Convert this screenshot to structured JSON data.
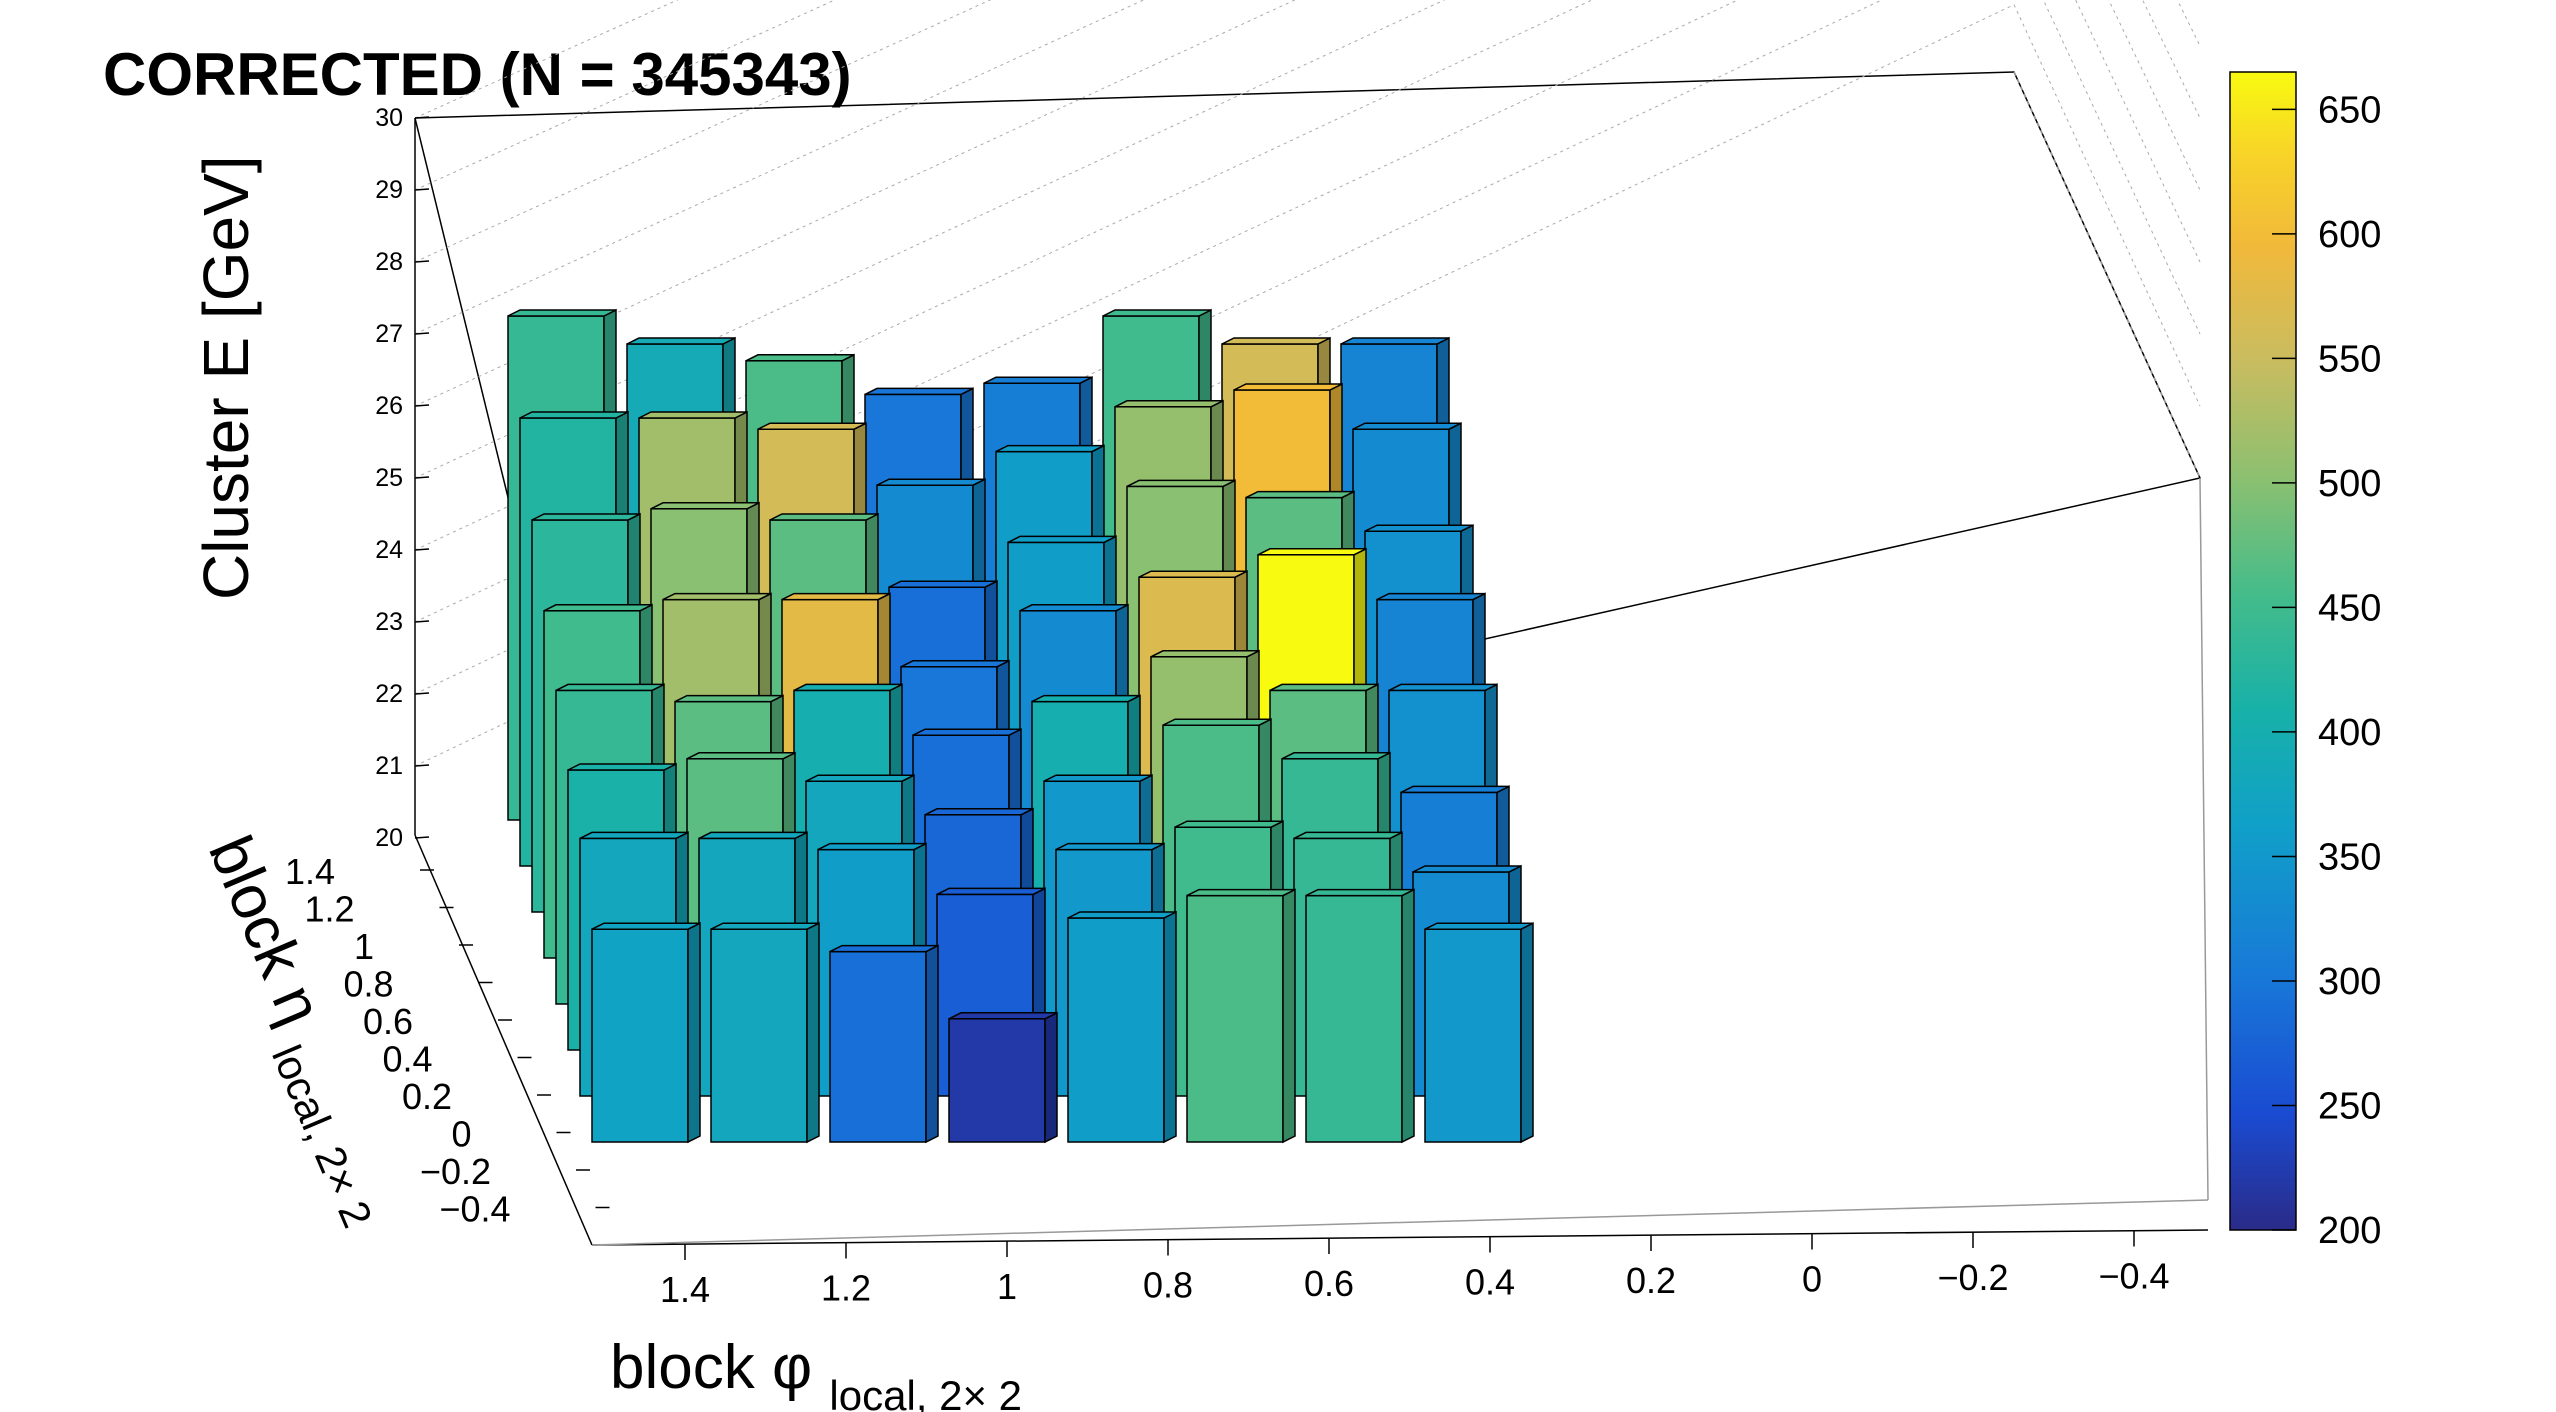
{
  "title": "CORRECTED  (N = 345343)",
  "chart_data": {
    "type": "bar3d",
    "title": "CORRECTED  (N = 345343)",
    "zlabel": "Cluster E  [GeV]",
    "xlabel_main": "block φ",
    "xlabel_sub": "local, 2× 2",
    "ylabel_main": "block η",
    "ylabel_sub": "local, 2× 2",
    "z_ticks": [
      "20",
      "21",
      "22",
      "23",
      "24",
      "25",
      "26",
      "27",
      "28",
      "29",
      "30"
    ],
    "x_ticks": [
      "1.4",
      "1.2",
      "1",
      "0.8",
      "0.6",
      "0.4",
      "0.2",
      "0",
      "−0.2",
      "−0.4"
    ],
    "y_ticks": [
      "1.4",
      "1.2",
      "1",
      "0.8",
      "0.6",
      "0.4",
      "0.2",
      "0",
      "−0.2",
      "−0.4"
    ],
    "zlim": [
      20,
      30
    ],
    "colorbar": {
      "range": [
        200,
        665
      ],
      "ticks": [
        "650",
        "600",
        "550",
        "500",
        "450",
        "400",
        "350",
        "300",
        "250",
        "200"
      ],
      "tick_values": [
        650,
        600,
        550,
        500,
        450,
        400,
        350,
        300,
        250,
        200
      ]
    },
    "grid": true,
    "legend": "colorbar-right",
    "x_bins": [
      "1.5",
      "1.25",
      "1.0",
      "0.75",
      "0.5",
      "0.25",
      "0",
      "−0.25"
    ],
    "y_bins": [
      "−0.25",
      "0",
      "0.25",
      "0.5",
      "0.75",
      "1.0",
      "1.25",
      "1.5"
    ],
    "bars": [
      {
        "x": "1.5",
        "y": "1.5",
        "e": 29.0,
        "color": 440
      },
      {
        "x": "1.25",
        "y": "1.5",
        "e": 28.5,
        "color": 390
      },
      {
        "x": "1.0",
        "y": "1.5",
        "e": 28.2,
        "color": 460
      },
      {
        "x": "0.75",
        "y": "1.5",
        "e": 27.6,
        "color": 300
      },
      {
        "x": "0.5",
        "y": "1.5",
        "e": 27.8,
        "color": 310
      },
      {
        "x": "0.25",
        "y": "1.5",
        "e": 29.0,
        "color": 450
      },
      {
        "x": "0",
        "y": "1.5",
        "e": 28.5,
        "color": 560
      },
      {
        "x": "−0.25",
        "y": "1.5",
        "e": 28.5,
        "color": 320
      },
      {
        "x": "1.5",
        "y": "1.25",
        "e": 28.0,
        "color": 420
      },
      {
        "x": "1.25",
        "y": "1.25",
        "e": 28.0,
        "color": 520
      },
      {
        "x": "1.0",
        "y": "1.25",
        "e": 27.8,
        "color": 560
      },
      {
        "x": "0.75",
        "y": "1.25",
        "e": 26.8,
        "color": 330
      },
      {
        "x": "0.5",
        "y": "1.25",
        "e": 27.4,
        "color": 360
      },
      {
        "x": "0.25",
        "y": "1.25",
        "e": 28.2,
        "color": 510
      },
      {
        "x": "0",
        "y": "1.25",
        "e": 28.5,
        "color": 600
      },
      {
        "x": "−0.25",
        "y": "1.25",
        "e": 27.8,
        "color": 330
      },
      {
        "x": "1.5",
        "y": "1.0",
        "e": 27.0,
        "color": 430
      },
      {
        "x": "1.25",
        "y": "1.0",
        "e": 27.2,
        "color": 500
      },
      {
        "x": "1.0",
        "y": "1.0",
        "e": 27.0,
        "color": 470
      },
      {
        "x": "0.75",
        "y": "1.0",
        "e": 25.8,
        "color": 290
      },
      {
        "x": "0.5",
        "y": "1.0",
        "e": 26.6,
        "color": 360
      },
      {
        "x": "0.25",
        "y": "1.0",
        "e": 27.6,
        "color": 500
      },
      {
        "x": "0",
        "y": "1.0",
        "e": 27.4,
        "color": 470
      },
      {
        "x": "−0.25",
        "y": "1.0",
        "e": 26.8,
        "color": 340
      },
      {
        "x": "1.5",
        "y": "0.75",
        "e": 26.2,
        "color": 450
      },
      {
        "x": "1.25",
        "y": "0.75",
        "e": 26.4,
        "color": 520
      },
      {
        "x": "1.0",
        "y": "0.75",
        "e": 26.4,
        "color": 580
      },
      {
        "x": "0.75",
        "y": "0.75",
        "e": 25.2,
        "color": 300
      },
      {
        "x": "0.5",
        "y": "0.75",
        "e": 26.2,
        "color": 330
      },
      {
        "x": "0.25",
        "y": "0.75",
        "e": 26.8,
        "color": 570
      },
      {
        "x": "0",
        "y": "0.75",
        "e": 27.2,
        "color": 665
      },
      {
        "x": "−0.25",
        "y": "0.75",
        "e": 26.4,
        "color": 320
      },
      {
        "x": "1.5",
        "y": "0.5",
        "e": 25.6,
        "color": 440
      },
      {
        "x": "1.25",
        "y": "0.5",
        "e": 25.4,
        "color": 470
      },
      {
        "x": "1.0",
        "y": "0.5",
        "e": 25.6,
        "color": 400
      },
      {
        "x": "0.75",
        "y": "0.5",
        "e": 24.8,
        "color": 290
      },
      {
        "x": "0.5",
        "y": "0.5",
        "e": 25.4,
        "color": 400
      },
      {
        "x": "0.25",
        "y": "0.5",
        "e": 26.2,
        "color": 510
      },
      {
        "x": "0",
        "y": "0.5",
        "e": 25.6,
        "color": 470
      },
      {
        "x": "−0.25",
        "y": "0.5",
        "e": 25.6,
        "color": 340
      },
      {
        "x": "1.5",
        "y": "0.25",
        "e": 25.0,
        "color": 410
      },
      {
        "x": "1.25",
        "y": "0.25",
        "e": 25.2,
        "color": 470
      },
      {
        "x": "1.0",
        "y": "0.25",
        "e": 24.8,
        "color": 380
      },
      {
        "x": "0.75",
        "y": "0.25",
        "e": 24.2,
        "color": 280
      },
      {
        "x": "0.5",
        "y": "0.25",
        "e": 24.8,
        "color": 350
      },
      {
        "x": "0.25",
        "y": "0.25",
        "e": 25.8,
        "color": 460
      },
      {
        "x": "0",
        "y": "0.25",
        "e": 25.2,
        "color": 440
      },
      {
        "x": "−0.25",
        "y": "0.25",
        "e": 24.6,
        "color": 310
      },
      {
        "x": "1.5",
        "y": "0",
        "e": 24.6,
        "color": 380
      },
      {
        "x": "1.25",
        "y": "0",
        "e": 24.6,
        "color": 380
      },
      {
        "x": "1.0",
        "y": "0",
        "e": 24.4,
        "color": 360
      },
      {
        "x": "0.75",
        "y": "0",
        "e": 23.6,
        "color": 270
      },
      {
        "x": "0.5",
        "y": "0",
        "e": 24.4,
        "color": 350
      },
      {
        "x": "0.25",
        "y": "0",
        "e": 24.8,
        "color": 450
      },
      {
        "x": "0",
        "y": "0",
        "e": 24.6,
        "color": 440
      },
      {
        "x": "−0.25",
        "y": "0",
        "e": 24.0,
        "color": 330
      },
      {
        "x": "1.5",
        "y": "−0.25",
        "e": 23.8,
        "color": 370
      },
      {
        "x": "1.25",
        "y": "−0.25",
        "e": 23.8,
        "color": 380
      },
      {
        "x": "1.0",
        "y": "−0.25",
        "e": 23.4,
        "color": 290
      },
      {
        "x": "0.75",
        "y": "−0.25",
        "e": 22.2,
        "color": 220
      },
      {
        "x": "0.5",
        "y": "−0.25",
        "e": 24.0,
        "color": 360
      },
      {
        "x": "0.25",
        "y": "−0.25",
        "e": 24.4,
        "color": 460
      },
      {
        "x": "0",
        "y": "−0.25",
        "e": 24.4,
        "color": 440
      },
      {
        "x": "−0.25",
        "y": "−0.25",
        "e": 23.8,
        "color": 350
      }
    ]
  }
}
